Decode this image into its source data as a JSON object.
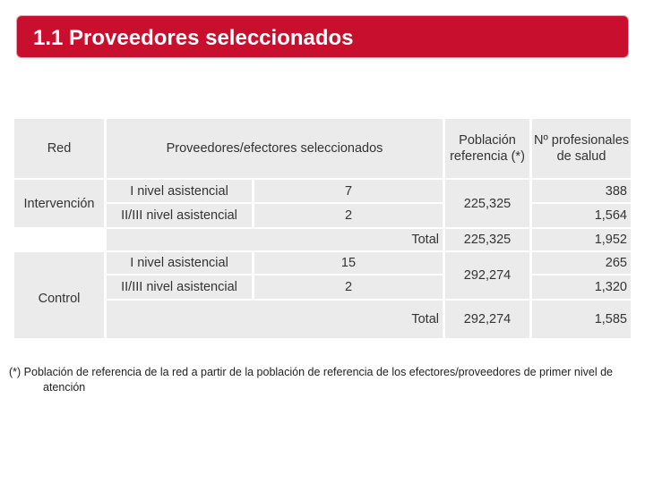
{
  "title": "1.1 Proveedores seleccionados",
  "table": {
    "headers": {
      "red": "Red",
      "proveedores": "Proveedores/efectores seleccionados",
      "poblacion": "Población referencia (*)",
      "profesionales": "Nº profesionales de salud"
    },
    "intervencion": {
      "label": "Intervención",
      "rows": [
        {
          "nivel": "I nivel asistencial",
          "count": "7",
          "profesionales": "388"
        },
        {
          "nivel": "II/III nivel asistencial",
          "count": "2",
          "profesionales": "1,564"
        }
      ],
      "poblacion": "225,325",
      "total_label": "Total",
      "total_poblacion": "225,325",
      "total_profesionales": "1,952"
    },
    "control": {
      "label": "Control",
      "rows": [
        {
          "nivel": "I nivel asistencial",
          "count": "15",
          "profesionales": "265"
        },
        {
          "nivel": "II/III nivel asistencial",
          "count": "2",
          "profesionales": "1,320"
        }
      ],
      "poblacion": "292,274",
      "total_label": "Total",
      "total_poblacion": "292,274",
      "total_profesionales": "1,585"
    }
  },
  "footnote": "(*) Población de referencia de la red a partir de la población de referencia de los efectores/proveedores de primer nivel de atención"
}
